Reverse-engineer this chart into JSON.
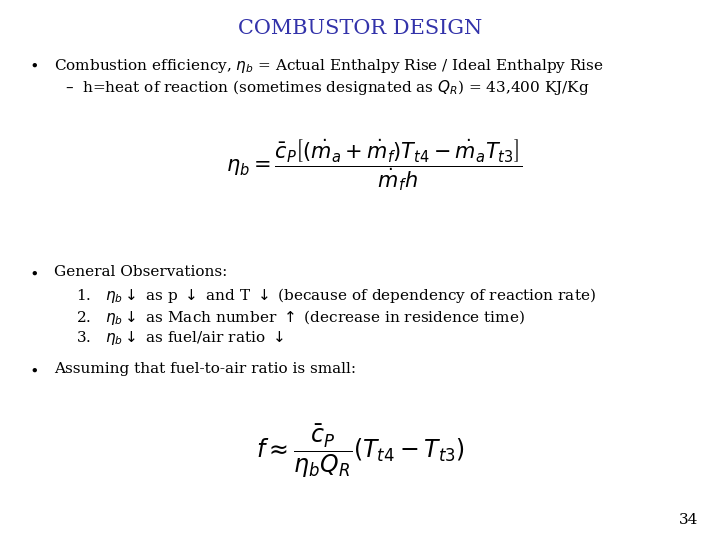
{
  "title": "COMBUSTOR DESIGN",
  "title_color": "#3333AA",
  "title_fontsize": 15,
  "background_color": "#FFFFFF",
  "text_color": "#000000",
  "bullet1_line1": "Combustion efficiency, $\\eta_b$ = Actual Enthalpy Rise / Ideal Enthalpy Rise",
  "bullet1_line2": "–  h=heat of reaction (sometimes designated as $Q_R$) = 43,400 KJ/Kg",
  "equation1": "$\\eta_b = \\dfrac{\\bar{c}_P \\left[(\\dot{m}_a + \\dot{m}_f)T_{t4} - \\dot{m}_a T_{t3}\\right]}{\\dot{m}_f h}$",
  "bullet2_title": "General Observations:",
  "obs1": "$\\eta_b \\downarrow$ as p $\\downarrow$ and T $\\downarrow$ (because of dependency of reaction rate)",
  "obs2": "$\\eta_b \\downarrow$ as Mach number $\\uparrow$ (decrease in residence time)",
  "obs3": "$\\eta_b \\downarrow$ as fuel/air ratio $\\downarrow$",
  "bullet3": "Assuming that fuel-to-air ratio is small:",
  "equation2": "$f \\approx \\dfrac{\\bar{c}_P}{\\eta_b Q_R} \\left(T_{t4} - T_{t3}\\right)$",
  "page_number": "34",
  "body_fontsize": 11,
  "eq_fontsize": 15
}
